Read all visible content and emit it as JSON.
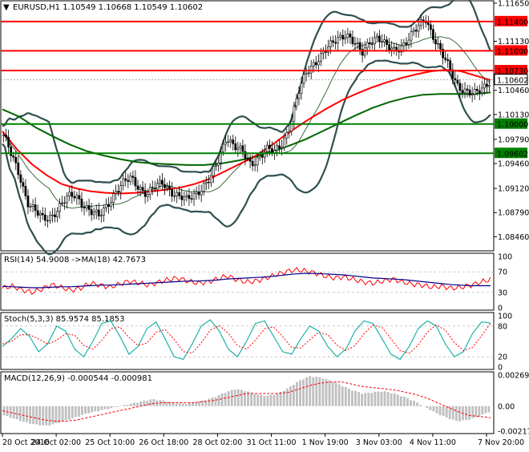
{
  "window": {
    "symbol_line": "EURUSD,H1  1.10549 1.10668 1.10549 1.10602"
  },
  "colors": {
    "resistance": "#ff0000",
    "support": "#008000",
    "ma_red": "#ff0000",
    "ma_green": "#006400",
    "bollinger": "#2f4f4f",
    "candle": "#000000",
    "rsi_line": "#ff0000",
    "rsi_ma": "#00008b",
    "stoch_main": "#20b2aa",
    "stoch_signal": "#ff0000",
    "macd_hist": "#c0c0c0",
    "macd_signal": "#ff0000",
    "price_tag_fill": "#ff0000",
    "support_tag_fill": "#008000",
    "current_tag_fill": "#ffffff"
  },
  "chart_data": [
    {
      "type": "candlestick",
      "panel": "price",
      "title": "EURUSD,H1",
      "ohlc_last": {
        "open": 1.10549,
        "high": 1.10668,
        "low": 1.10549,
        "close": 1.10602
      },
      "ylim": [
        1.083,
        1.1165
      ],
      "y_ticks": [
        "1.11650",
        "1.11130",
        "1.10730",
        "1.10460",
        "1.10130",
        "1.09790",
        "1.09460",
        "1.09120",
        "1.08790",
        "1.08460"
      ],
      "x_ticks": [
        "20 Oct 2016",
        "24 Oct 02:00",
        "25 Oct 10:00",
        "26 Oct 18:00",
        "28 Oct 02:00",
        "31 Oct 11:00",
        "1 Nov 19:00",
        "3 Nov 03:00",
        "4 Nov 11:00",
        "7 Nov 20:00"
      ],
      "horizontal_levels": [
        {
          "value": 1.114,
          "label": "1.11400",
          "role": "resistance"
        },
        {
          "value": 1.11,
          "label": "1.11000",
          "role": "resistance"
        },
        {
          "value": 1.1073,
          "label": "1.10730",
          "role": "resistance"
        },
        {
          "value": 1.1,
          "label": "1.10000",
          "role": "support"
        },
        {
          "value": 1.096,
          "label": "1.09602",
          "role": "support"
        }
      ],
      "current_price": {
        "value": 1.10602,
        "label": "1.10602"
      },
      "price_path": [
        1.0985,
        1.0955,
        1.093,
        1.0895,
        1.088,
        1.0868,
        1.0875,
        1.0888,
        1.0898,
        1.0902,
        1.0892,
        1.088,
        1.0872,
        1.089,
        1.0908,
        1.0918,
        1.0925,
        1.0915,
        1.0905,
        1.0912,
        1.092,
        1.091,
        1.09,
        1.0895,
        1.0905,
        1.0915,
        1.0925,
        1.095,
        1.0985,
        1.097,
        1.096,
        1.0945,
        1.0955,
        1.0965,
        1.096,
        1.0975,
        1.1,
        1.104,
        1.107,
        1.1085,
        1.1095,
        1.1105,
        1.1118,
        1.1125,
        1.111,
        1.1095,
        1.1115,
        1.112,
        1.1105,
        1.11,
        1.1108,
        1.1118,
        1.113,
        1.1145,
        1.112,
        1.1095,
        1.1075,
        1.1055,
        1.1045,
        1.1038,
        1.1048,
        1.106
      ],
      "ma_red": [
        1.099,
        1.0965,
        1.0945,
        1.093,
        1.0918,
        1.0912,
        1.0908,
        1.0906,
        1.0905,
        1.0906,
        1.0908,
        1.091,
        1.0913,
        1.0918,
        1.0925,
        1.0935,
        1.0945,
        1.0955,
        1.0968,
        1.0983,
        1.0997,
        1.101,
        1.1022,
        1.1033,
        1.1042,
        1.105,
        1.1057,
        1.1063,
        1.1068,
        1.1072,
        1.1074,
        1.1072,
        1.1066,
        1.106
      ],
      "ma_green": [
        1.102,
        1.101,
        1.0995,
        1.0983,
        1.0972,
        1.0963,
        1.0957,
        1.0952,
        1.0948,
        1.0946,
        1.0945,
        1.0944,
        1.0944,
        1.0946,
        1.095,
        1.0955,
        1.0962,
        1.097,
        1.0979,
        1.099,
        1.1001,
        1.1012,
        1.1022,
        1.103,
        1.1036,
        1.104,
        1.1041,
        1.1041,
        1.1041,
        1.1043
      ]
    },
    {
      "type": "line",
      "panel": "rsi",
      "title": "RSI(14) 54.9008 ->MA(18) 42.7673",
      "ylim": [
        0,
        100
      ],
      "y_ticks": [
        "100",
        "70",
        "30",
        "0"
      ],
      "series": [
        {
          "name": "RSI(14)",
          "values": [
            38,
            42,
            35,
            30,
            36,
            45,
            40,
            34,
            38,
            48,
            44,
            40,
            46,
            52,
            48,
            44,
            50,
            55,
            58,
            52,
            48,
            50,
            56,
            62,
            55,
            50,
            52,
            58,
            64,
            70,
            74,
            72,
            68,
            62,
            58,
            60,
            55,
            50,
            48,
            52,
            56,
            50,
            46,
            44,
            40,
            42,
            38,
            40,
            44,
            50,
            55
          ]
        },
        {
          "name": "MA(18)",
          "values": [
            42,
            41,
            40,
            39,
            39,
            40,
            41,
            41,
            42,
            43,
            44,
            44,
            45,
            46,
            47,
            48,
            49,
            50,
            51,
            52,
            52,
            53,
            54,
            56,
            57,
            58,
            59,
            60,
            62,
            64,
            66,
            67,
            67,
            66,
            65,
            64,
            62,
            60,
            58,
            57,
            56,
            55,
            53,
            51,
            49,
            47,
            45,
            44,
            43,
            43,
            43
          ]
        }
      ]
    },
    {
      "type": "line",
      "panel": "stochastic",
      "title": "Stoch(5,3,3) 85.9574 85.1853",
      "ylim": [
        0,
        100
      ],
      "y_ticks": [
        "100",
        "80",
        "20",
        "0"
      ],
      "series": [
        {
          "name": "%K",
          "values": [
            40,
            55,
            75,
            60,
            30,
            45,
            80,
            70,
            35,
            20,
            50,
            85,
            90,
            60,
            25,
            40,
            75,
            88,
            55,
            20,
            15,
            45,
            80,
            92,
            70,
            35,
            20,
            50,
            85,
            90,
            60,
            30,
            25,
            55,
            80,
            70,
            40,
            20,
            35,
            70,
            90,
            85,
            55,
            25,
            15,
            40,
            75,
            90,
            80,
            45,
            20,
            30,
            65,
            88,
            86
          ]
        },
        {
          "name": "%D",
          "values": [
            45,
            50,
            63,
            63,
            55,
            45,
            52,
            65,
            62,
            42,
            35,
            52,
            75,
            78,
            58,
            42,
            47,
            68,
            73,
            54,
            30,
            27,
            47,
            72,
            81,
            66,
            42,
            35,
            52,
            75,
            78,
            60,
            38,
            37,
            53,
            68,
            63,
            43,
            32,
            42,
            65,
            82,
            77,
            55,
            32,
            27,
            43,
            68,
            82,
            72,
            48,
            32,
            38,
            61,
            85
          ]
        }
      ]
    },
    {
      "type": "bar",
      "panel": "macd",
      "title": "MACD(12,26,9) -0.000544 -0.000981",
      "ylim": [
        -0.00217,
        0.002698
      ],
      "y_ticks": [
        "0.002698",
        "0.00",
        "-0.00217"
      ],
      "series": [
        {
          "name": "MACD",
          "values": [
            -0.0008,
            -0.0011,
            -0.0014,
            -0.0016,
            -0.0017,
            -0.0015,
            -0.0012,
            -0.0009,
            -0.0006,
            -0.0004,
            -0.0002,
            0.0,
            0.0002,
            0.0004,
            0.0006,
            0.0005,
            0.0003,
            0.0002,
            0.0003,
            0.0005,
            0.0008,
            0.0012,
            0.0015,
            0.0013,
            0.001,
            0.0009,
            0.0011,
            0.0016,
            0.0022,
            0.0026,
            0.0025,
            0.0022,
            0.0018,
            0.0014,
            0.0011,
            0.0012,
            0.0013,
            0.0011,
            0.0008,
            0.0004,
            -0.0001,
            -0.0006,
            -0.001,
            -0.0013,
            -0.0012,
            -0.0009,
            -0.0005
          ]
        },
        {
          "name": "Signal",
          "values": [
            -0.0004,
            -0.0006,
            -0.0008,
            -0.001,
            -0.0012,
            -0.0013,
            -0.0013,
            -0.0012,
            -0.001,
            -0.0008,
            -0.0006,
            -0.0004,
            -0.0002,
            0.0,
            0.0002,
            0.0003,
            0.0003,
            0.0003,
            0.0003,
            0.0004,
            0.0005,
            0.0007,
            0.0009,
            0.0011,
            0.0011,
            0.0011,
            0.0011,
            0.0012,
            0.0015,
            0.0018,
            0.002,
            0.0021,
            0.0021,
            0.0019,
            0.0017,
            0.0016,
            0.0015,
            0.0014,
            0.0012,
            0.001,
            0.0007,
            0.0003,
            -0.0001,
            -0.0005,
            -0.0008,
            -0.0009,
            -0.001
          ]
        }
      ]
    }
  ]
}
